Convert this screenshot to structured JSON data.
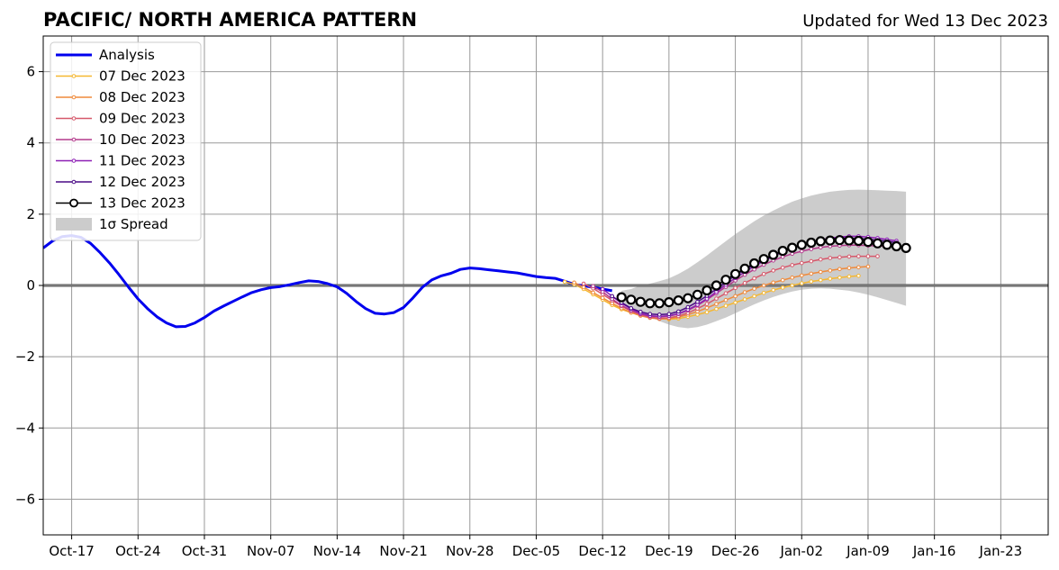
{
  "chart_data": {
    "type": "line",
    "title": "PACIFIC/ NORTH AMERICA PATTERN",
    "subtitle": "Updated for Wed 13 Dec 2023",
    "xlabel": "",
    "ylabel": "",
    "x_ticks": [
      "Oct-17",
      "Oct-24",
      "Oct-31",
      "Nov-07",
      "Nov-14",
      "Nov-21",
      "Nov-28",
      "Dec-05",
      "Dec-12",
      "Dec-19",
      "Dec-26",
      "Jan-02",
      "Jan-09",
      "Jan-16",
      "Jan-23"
    ],
    "x_tick_dates": [
      "2023-10-17",
      "2023-10-24",
      "2023-10-31",
      "2023-11-07",
      "2023-11-14",
      "2023-11-21",
      "2023-11-28",
      "2023-12-05",
      "2023-12-12",
      "2023-12-19",
      "2023-12-26",
      "2024-01-02",
      "2024-01-09",
      "2024-01-16",
      "2024-01-23"
    ],
    "y_ticks": [
      "6",
      "4",
      "2",
      "0",
      "−2",
      "−4",
      "−6"
    ],
    "y_tick_values": [
      6,
      4,
      2,
      0,
      -2,
      -4,
      -6
    ],
    "xlim": [
      "2023-10-14",
      "2024-01-28"
    ],
    "ylim": [
      -7,
      7
    ],
    "grid": true,
    "zero_line": true,
    "legend_position": "top-left",
    "legend": [
      "Analysis",
      "07 Dec 2023",
      "08 Dec 2023",
      "09 Dec 2023",
      "10 Dec 2023",
      "11 Dec 2023",
      "12 Dec 2023",
      "13 Dec 2023",
      "1σ Spread"
    ],
    "colors": {
      "analysis": "#0000ee",
      "spread": "#cccccc",
      "grid": "#999999",
      "zero": "#555555",
      "f07": "#f5b730",
      "f08": "#ef8a3b",
      "f09": "#d6586b",
      "f10": "#b33a8c",
      "f11": "#8d1fb5",
      "f12": "#4a0a86",
      "f13": "#000000"
    },
    "analysis": {
      "x": [
        "2023-10-14",
        "2023-10-15",
        "2023-10-16",
        "2023-10-17",
        "2023-10-18",
        "2023-10-19",
        "2023-10-20",
        "2023-10-21",
        "2023-10-22",
        "2023-10-23",
        "2023-10-24",
        "2023-10-25",
        "2023-10-26",
        "2023-10-27",
        "2023-10-28",
        "2023-10-29",
        "2023-10-30",
        "2023-10-31",
        "2023-11-01",
        "2023-11-02",
        "2023-11-03",
        "2023-11-04",
        "2023-11-05",
        "2023-11-06",
        "2023-11-07",
        "2023-11-08",
        "2023-11-09",
        "2023-11-10",
        "2023-11-11",
        "2023-11-12",
        "2023-11-13",
        "2023-11-14",
        "2023-11-15",
        "2023-11-16",
        "2023-11-17",
        "2023-11-18",
        "2023-11-19",
        "2023-11-20",
        "2023-11-21",
        "2023-11-22",
        "2023-11-23",
        "2023-11-24",
        "2023-11-25",
        "2023-11-26",
        "2023-11-27",
        "2023-11-28",
        "2023-11-29",
        "2023-11-30",
        "2023-12-01",
        "2023-12-02",
        "2023-12-03",
        "2023-12-04",
        "2023-12-05",
        "2023-12-06",
        "2023-12-07",
        "2023-12-08",
        "2023-12-09",
        "2023-12-10",
        "2023-12-11",
        "2023-12-12",
        "2023-12-13"
      ],
      "y": [
        1.05,
        1.25,
        1.37,
        1.4,
        1.35,
        1.18,
        0.92,
        0.63,
        0.3,
        -0.05,
        -0.38,
        -0.65,
        -0.88,
        -1.05,
        -1.16,
        -1.15,
        -1.05,
        -0.9,
        -0.72,
        -0.58,
        -0.45,
        -0.32,
        -0.2,
        -0.12,
        -0.06,
        -0.03,
        0.02,
        0.08,
        0.13,
        0.11,
        0.05,
        -0.04,
        -0.22,
        -0.45,
        -0.65,
        -0.78,
        -0.8,
        -0.76,
        -0.62,
        -0.35,
        -0.05,
        0.16,
        0.27,
        0.34,
        0.45,
        0.49,
        0.47,
        0.44,
        0.41,
        0.38,
        0.35,
        0.3,
        0.25,
        0.22,
        0.2,
        0.12,
        0.03,
        -0.01,
        -0.05,
        -0.1,
        -0.15
      ]
    },
    "spread": {
      "x": [
        "2023-12-14",
        "2023-12-15",
        "2023-12-16",
        "2023-12-17",
        "2023-12-18",
        "2023-12-19",
        "2023-12-20",
        "2023-12-21",
        "2023-12-22",
        "2023-12-23",
        "2023-12-24",
        "2023-12-25",
        "2023-12-26",
        "2023-12-27",
        "2023-12-28",
        "2023-12-29",
        "2023-12-30",
        "2023-12-31",
        "2024-01-01",
        "2024-01-02",
        "2024-01-03",
        "2024-01-04",
        "2024-01-05",
        "2024-01-06",
        "2024-01-07",
        "2024-01-08",
        "2024-01-09",
        "2024-01-10",
        "2024-01-11",
        "2024-01-12",
        "2024-01-13"
      ],
      "upper": [
        -0.15,
        -0.1,
        0.0,
        0.05,
        0.12,
        0.2,
        0.32,
        0.47,
        0.65,
        0.84,
        1.04,
        1.24,
        1.44,
        1.62,
        1.8,
        1.96,
        2.1,
        2.23,
        2.35,
        2.44,
        2.52,
        2.58,
        2.63,
        2.66,
        2.68,
        2.69,
        2.68,
        2.67,
        2.66,
        2.65,
        2.63
      ],
      "lower": [
        -0.5,
        -0.62,
        -0.75,
        -0.88,
        -1.0,
        -1.1,
        -1.17,
        -1.2,
        -1.17,
        -1.1,
        -1.0,
        -0.9,
        -0.78,
        -0.65,
        -0.53,
        -0.42,
        -0.32,
        -0.24,
        -0.17,
        -0.12,
        -0.09,
        -0.08,
        -0.09,
        -0.12,
        -0.15,
        -0.2,
        -0.26,
        -0.33,
        -0.41,
        -0.49,
        -0.57
      ]
    },
    "series": [
      {
        "name": "07 Dec 2023",
        "color_key": "f07",
        "marker": "dot",
        "x": [
          "2023-12-08",
          "2023-12-09",
          "2023-12-10",
          "2023-12-11",
          "2023-12-12",
          "2023-12-13",
          "2023-12-14",
          "2023-12-15",
          "2023-12-16",
          "2023-12-17",
          "2023-12-18",
          "2023-12-19",
          "2023-12-20",
          "2023-12-21",
          "2023-12-22",
          "2023-12-23",
          "2023-12-24",
          "2023-12-25",
          "2023-12-26",
          "2023-12-27",
          "2023-12-28",
          "2023-12-29",
          "2023-12-30",
          "2023-12-31",
          "2024-01-01",
          "2024-01-02",
          "2024-01-03",
          "2024-01-04",
          "2024-01-05",
          "2024-01-06",
          "2024-01-07",
          "2024-01-08"
        ],
        "y": [
          0.1,
          0.03,
          -0.1,
          -0.25,
          -0.4,
          -0.55,
          -0.67,
          -0.76,
          -0.84,
          -0.9,
          -0.93,
          -0.95,
          -0.93,
          -0.88,
          -0.82,
          -0.75,
          -0.66,
          -0.57,
          -0.48,
          -0.39,
          -0.3,
          -0.21,
          -0.13,
          -0.06,
          0.0,
          0.06,
          0.11,
          0.15,
          0.19,
          0.22,
          0.25,
          0.27
        ]
      },
      {
        "name": "08 Dec 2023",
        "color_key": "f08",
        "marker": "dot",
        "x": [
          "2023-12-09",
          "2023-12-10",
          "2023-12-11",
          "2023-12-12",
          "2023-12-13",
          "2023-12-14",
          "2023-12-15",
          "2023-12-16",
          "2023-12-17",
          "2023-12-18",
          "2023-12-19",
          "2023-12-20",
          "2023-12-21",
          "2023-12-22",
          "2023-12-23",
          "2023-12-24",
          "2023-12-25",
          "2023-12-26",
          "2023-12-27",
          "2023-12-28",
          "2023-12-29",
          "2023-12-30",
          "2023-12-31",
          "2024-01-01",
          "2024-01-02",
          "2024-01-03",
          "2024-01-04",
          "2024-01-05",
          "2024-01-06",
          "2024-01-07",
          "2024-01-08",
          "2024-01-09"
        ],
        "y": [
          0.08,
          -0.05,
          -0.2,
          -0.35,
          -0.5,
          -0.64,
          -0.76,
          -0.85,
          -0.91,
          -0.94,
          -0.93,
          -0.89,
          -0.82,
          -0.73,
          -0.63,
          -0.52,
          -0.41,
          -0.3,
          -0.19,
          -0.09,
          0.0,
          0.08,
          0.15,
          0.22,
          0.28,
          0.33,
          0.38,
          0.42,
          0.46,
          0.49,
          0.51,
          0.53
        ]
      },
      {
        "name": "09 Dec 2023",
        "color_key": "f09",
        "marker": "dot",
        "x": [
          "2023-12-10",
          "2023-12-11",
          "2023-12-12",
          "2023-12-13",
          "2023-12-14",
          "2023-12-15",
          "2023-12-16",
          "2023-12-17",
          "2023-12-18",
          "2023-12-19",
          "2023-12-20",
          "2023-12-21",
          "2023-12-22",
          "2023-12-23",
          "2023-12-24",
          "2023-12-25",
          "2023-12-26",
          "2023-12-27",
          "2023-12-28",
          "2023-12-29",
          "2023-12-30",
          "2023-12-31",
          "2024-01-01",
          "2024-01-02",
          "2024-01-03",
          "2024-01-04",
          "2024-01-05",
          "2024-01-06",
          "2024-01-07",
          "2024-01-08",
          "2024-01-09",
          "2024-01-10"
        ],
        "y": [
          0.05,
          -0.08,
          -0.25,
          -0.42,
          -0.58,
          -0.72,
          -0.82,
          -0.89,
          -0.92,
          -0.91,
          -0.86,
          -0.77,
          -0.65,
          -0.52,
          -0.37,
          -0.22,
          -0.07,
          0.07,
          0.2,
          0.32,
          0.42,
          0.5,
          0.57,
          0.63,
          0.68,
          0.73,
          0.77,
          0.79,
          0.81,
          0.82,
          0.82,
          0.82
        ]
      },
      {
        "name": "10 Dec 2023",
        "color_key": "f10",
        "marker": "dot",
        "x": [
          "2023-12-11",
          "2023-12-12",
          "2023-12-13",
          "2023-12-14",
          "2023-12-15",
          "2023-12-16",
          "2023-12-17",
          "2023-12-18",
          "2023-12-19",
          "2023-12-20",
          "2023-12-21",
          "2023-12-22",
          "2023-12-23",
          "2023-12-24",
          "2023-12-25",
          "2023-12-26",
          "2023-12-27",
          "2023-12-28",
          "2023-12-29",
          "2023-12-30",
          "2023-12-31",
          "2024-01-01",
          "2024-01-02",
          "2024-01-03",
          "2024-01-04",
          "2024-01-05",
          "2024-01-06",
          "2024-01-07",
          "2024-01-08",
          "2024-01-09",
          "2024-01-10",
          "2024-01-11"
        ],
        "y": [
          -0.02,
          -0.18,
          -0.38,
          -0.56,
          -0.7,
          -0.8,
          -0.86,
          -0.88,
          -0.86,
          -0.8,
          -0.7,
          -0.56,
          -0.4,
          -0.22,
          -0.04,
          0.14,
          0.3,
          0.45,
          0.58,
          0.7,
          0.8,
          0.89,
          0.96,
          1.02,
          1.07,
          1.1,
          1.12,
          1.13,
          1.13,
          1.12,
          1.11,
          1.1
        ]
      },
      {
        "name": "11 Dec 2023",
        "color_key": "f11",
        "marker": "dot",
        "x": [
          "2023-12-12",
          "2023-12-13",
          "2023-12-14",
          "2023-12-15",
          "2023-12-16",
          "2023-12-17",
          "2023-12-18",
          "2023-12-19",
          "2023-12-20",
          "2023-12-21",
          "2023-12-22",
          "2023-12-23",
          "2023-12-24",
          "2023-12-25",
          "2023-12-26",
          "2023-12-27",
          "2023-12-28",
          "2023-12-29",
          "2023-12-30",
          "2023-12-31",
          "2024-01-01",
          "2024-01-02",
          "2024-01-03",
          "2024-01-04",
          "2024-01-05",
          "2024-01-06",
          "2024-01-07",
          "2024-01-08",
          "2024-01-09",
          "2024-01-10",
          "2024-01-11",
          "2024-01-12"
        ],
        "y": [
          -0.1,
          -0.3,
          -0.5,
          -0.66,
          -0.78,
          -0.85,
          -0.87,
          -0.85,
          -0.79,
          -0.68,
          -0.54,
          -0.37,
          -0.18,
          0.02,
          0.21,
          0.38,
          0.54,
          0.68,
          0.82,
          0.94,
          1.05,
          1.14,
          1.22,
          1.28,
          1.33,
          1.36,
          1.38,
          1.38,
          1.36,
          1.33,
          1.29,
          1.25
        ]
      },
      {
        "name": "12 Dec 2023",
        "color_key": "f12",
        "marker": "dot",
        "x": [
          "2023-12-13",
          "2023-12-14",
          "2023-12-15",
          "2023-12-16",
          "2023-12-17",
          "2023-12-18",
          "2023-12-19",
          "2023-12-20",
          "2023-12-21",
          "2023-12-22",
          "2023-12-23",
          "2023-12-24",
          "2023-12-25",
          "2023-12-26",
          "2023-12-27",
          "2023-12-28",
          "2023-12-29",
          "2023-12-30",
          "2023-12-31",
          "2024-01-01",
          "2024-01-02",
          "2024-01-03",
          "2024-01-04",
          "2024-01-05",
          "2024-01-06",
          "2024-01-07",
          "2024-01-08",
          "2024-01-09",
          "2024-01-10",
          "2024-01-11",
          "2024-01-12"
        ],
        "y": [
          -0.3,
          -0.48,
          -0.64,
          -0.74,
          -0.8,
          -0.82,
          -0.8,
          -0.73,
          -0.61,
          -0.46,
          -0.29,
          -0.1,
          0.1,
          0.28,
          0.44,
          0.58,
          0.71,
          0.83,
          0.95,
          1.06,
          1.15,
          1.22,
          1.27,
          1.31,
          1.33,
          1.33,
          1.32,
          1.3,
          1.27,
          1.24,
          1.2
        ]
      },
      {
        "name": "13 Dec 2023",
        "color_key": "f13",
        "marker": "circle",
        "x": [
          "2023-12-14",
          "2023-12-15",
          "2023-12-16",
          "2023-12-17",
          "2023-12-18",
          "2023-12-19",
          "2023-12-20",
          "2023-12-21",
          "2023-12-22",
          "2023-12-23",
          "2023-12-24",
          "2023-12-25",
          "2023-12-26",
          "2023-12-27",
          "2023-12-28",
          "2023-12-29",
          "2023-12-30",
          "2023-12-31",
          "2024-01-01",
          "2024-01-02",
          "2024-01-03",
          "2024-01-04",
          "2024-01-05",
          "2024-01-06",
          "2024-01-07",
          "2024-01-08",
          "2024-01-09",
          "2024-01-10",
          "2024-01-11",
          "2024-01-12",
          "2024-01-13"
        ],
        "y": [
          -0.33,
          -0.4,
          -0.46,
          -0.5,
          -0.5,
          -0.47,
          -0.42,
          -0.36,
          -0.26,
          -0.14,
          0.0,
          0.16,
          0.32,
          0.47,
          0.62,
          0.74,
          0.86,
          0.97,
          1.06,
          1.14,
          1.2,
          1.24,
          1.26,
          1.27,
          1.26,
          1.25,
          1.22,
          1.18,
          1.14,
          1.1,
          1.05
        ]
      }
    ]
  }
}
